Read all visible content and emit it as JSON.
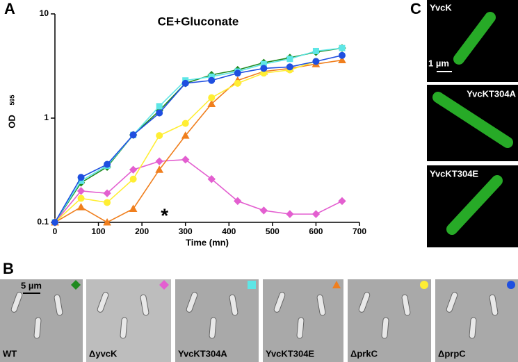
{
  "chart_data": {
    "type": "line",
    "title": "CE+Gluconate",
    "x_label": "Time (mn)",
    "y_label": "OD",
    "y_label_sub": "595",
    "annotation": "*",
    "log_scale_y": true,
    "x": [
      0,
      60,
      120,
      180,
      240,
      300,
      360,
      420,
      480,
      540,
      600,
      660
    ],
    "xlim": [
      0,
      700
    ],
    "xticks": [
      0,
      100,
      200,
      300,
      400,
      500,
      600,
      700
    ],
    "ylim": [
      0.1,
      10
    ],
    "yticks": [
      0.1,
      1,
      10
    ],
    "series": [
      {
        "color": "#1f8a1f",
        "marker": "diamond",
        "values": [
          0.1,
          0.24,
          0.34,
          0.69,
          1.18,
          2.16,
          2.6,
          2.9,
          3.4,
          3.8,
          4.3,
          4.7
        ]
      },
      {
        "color": "#e35fd0",
        "marker": "diamond",
        "values": [
          0.1,
          0.2,
          0.19,
          0.32,
          0.385,
          0.4,
          0.26,
          0.16,
          0.13,
          0.12,
          0.12,
          0.16
        ]
      },
      {
        "color": "#5ee6e6",
        "marker": "square",
        "values": [
          0.1,
          0.25,
          0.35,
          0.69,
          1.3,
          2.3,
          2.5,
          2.8,
          3.3,
          3.7,
          4.4,
          4.7
        ]
      },
      {
        "color": "#f07f1e",
        "marker": "triangle",
        "values": [
          0.1,
          0.14,
          0.1,
          0.135,
          0.32,
          0.68,
          1.37,
          2.3,
          2.8,
          3.0,
          3.3,
          3.6
        ]
      },
      {
        "color": "#ffee33",
        "marker": "circle",
        "values": [
          0.1,
          0.17,
          0.155,
          0.26,
          0.68,
          0.89,
          1.57,
          2.16,
          2.7,
          2.9,
          3.5,
          null
        ]
      },
      {
        "color": "#1f4fe0",
        "marker": "circle",
        "values": [
          0.1,
          0.27,
          0.36,
          0.69,
          1.12,
          2.16,
          2.3,
          2.7,
          3.0,
          3.1,
          3.5,
          4.0
        ]
      }
    ]
  },
  "panels": {
    "a": "A",
    "b": "B",
    "c": "C"
  },
  "fluorescence": [
    "YvcK",
    "YvcKT304A",
    "YvcKT304E"
  ],
  "fluorescence_scale": "1 µm",
  "micrographs": [
    "WT",
    "ΔyvcK",
    "YvcKT304A",
    "YvcKT304E",
    "ΔprkC",
    "ΔprpC"
  ],
  "micrograph_scale": "5 µm"
}
